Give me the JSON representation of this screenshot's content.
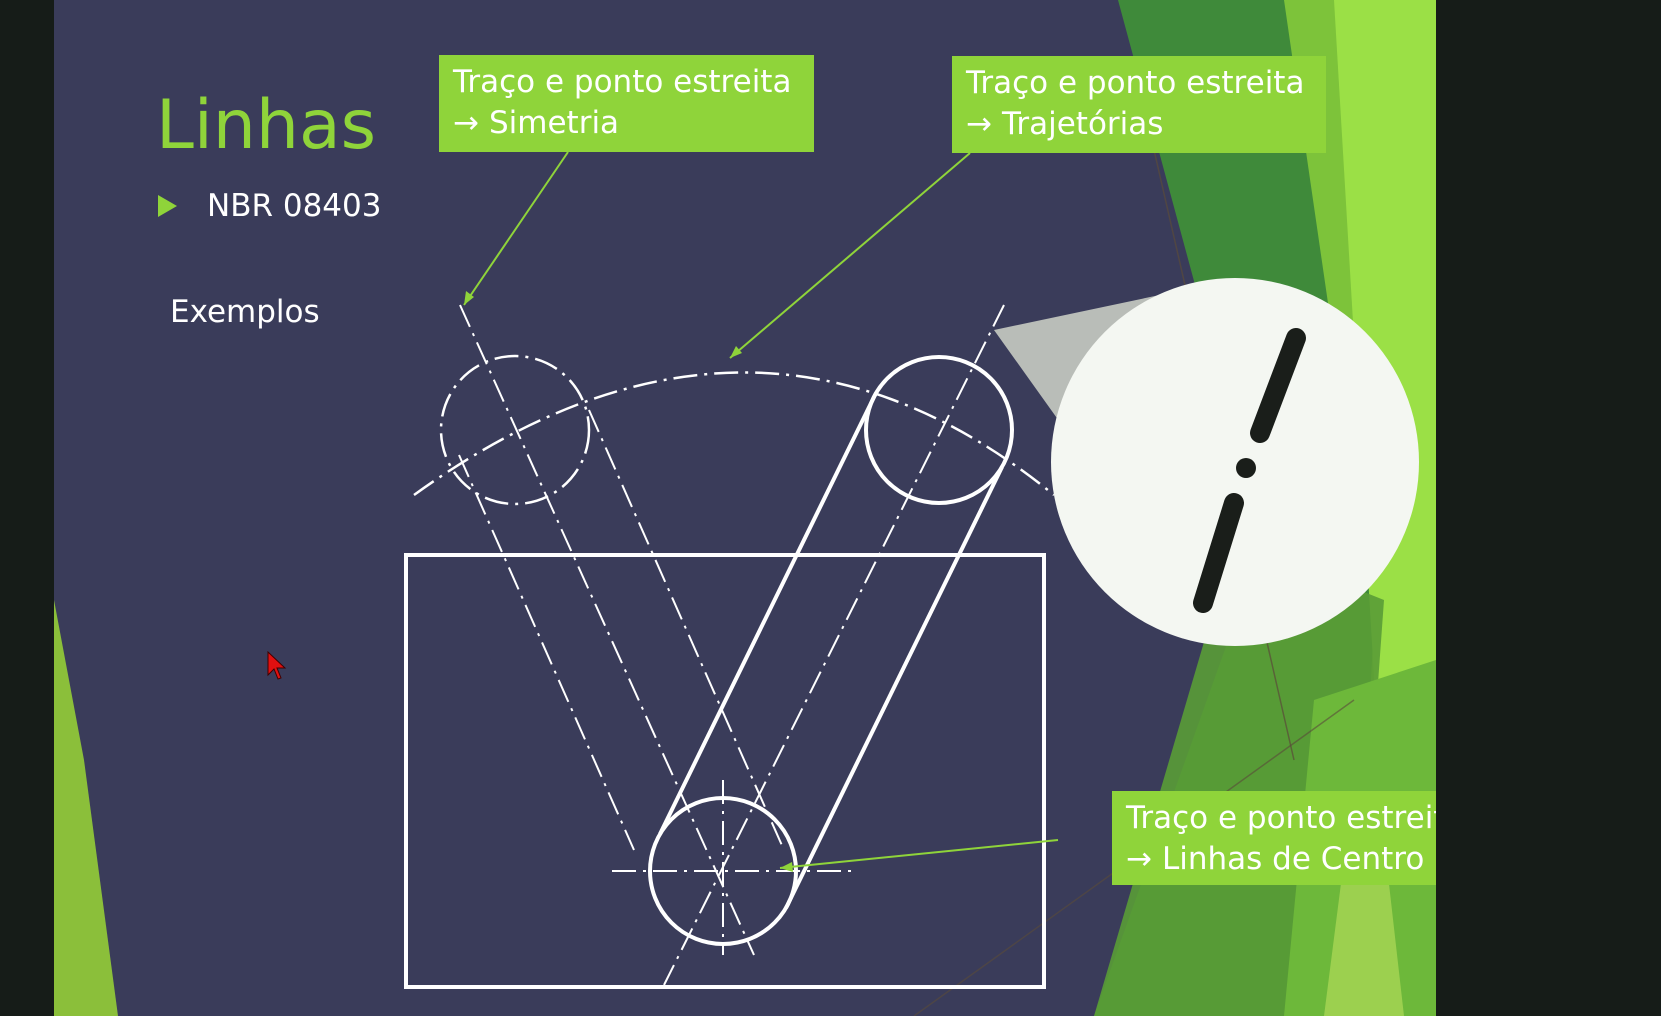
{
  "slide": {
    "title": "Linhas",
    "bullet": "NBR 08403",
    "subtitle": "Exemplos"
  },
  "callouts": [
    {
      "line1": "Traço e ponto estreita",
      "arrow": "→",
      "line2": "Simetria"
    },
    {
      "line1": "Traço e ponto estreita",
      "arrow": "→",
      "line2": "Trajetórias"
    },
    {
      "line1": "Traço e ponto estreita",
      "arrow": "→",
      "line2": "Linhas de Centro"
    }
  ],
  "colors": {
    "background": "#3a3c5a",
    "accent": "#8fd43a",
    "line": "#ffffff",
    "zoom_bg": "#f4f7f2"
  },
  "icons": {
    "bullet": "triangle-bullet-icon",
    "cursor": "mouse-pointer-icon"
  }
}
